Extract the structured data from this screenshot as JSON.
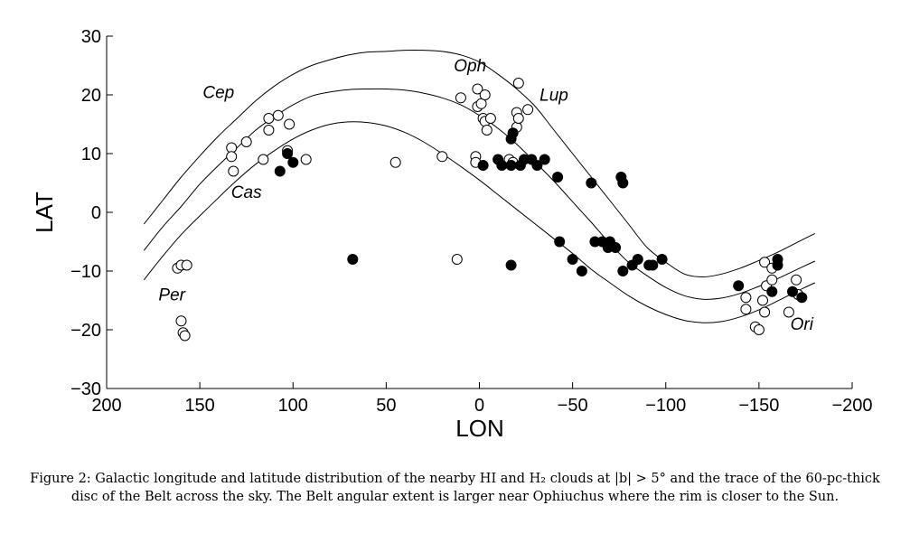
{
  "chart_data": {
    "type": "scatter",
    "title": "",
    "xlabel": "LON",
    "ylabel": "LAT",
    "xlim": [
      200,
      -200
    ],
    "ylim": [
      -30,
      30
    ],
    "xticks": [
      200,
      150,
      100,
      50,
      0,
      -50,
      -100,
      -150,
      -200
    ],
    "yticks": [
      30,
      20,
      10,
      0,
      -10,
      -20,
      -30
    ],
    "xtick_labels": [
      "200",
      "150",
      "100",
      "50",
      "0",
      "−50",
      "−100",
      "−150",
      "−200"
    ],
    "ytick_labels": [
      "30",
      "20",
      "10",
      "0",
      "−10",
      "−20",
      "−30"
    ],
    "grid": false,
    "legend": null,
    "region_labels": [
      {
        "text": "Cep",
        "lon": 140,
        "lat": 19.5
      },
      {
        "text": "Cas",
        "lon": 125,
        "lat": 2.5
      },
      {
        "text": "Per",
        "lon": 165,
        "lat": -15
      },
      {
        "text": "Oph",
        "lon": 5,
        "lat": 24
      },
      {
        "text": "Lup",
        "lon": -40,
        "lat": 19
      },
      {
        "text": "Ori",
        "lon": -173,
        "lat": -20
      }
    ],
    "curves": [
      {
        "x": [
          180,
          170,
          160,
          150,
          140,
          130,
          120,
          110,
          100,
          90,
          80,
          70,
          60,
          50,
          40,
          30,
          20,
          10,
          0,
          -10,
          -20,
          -30,
          -40,
          -50,
          -60,
          -70,
          -80,
          -90,
          -100,
          -110,
          -120,
          -130,
          -140,
          -150,
          -160,
          -170,
          -180
        ],
        "y": [
          -2,
          2,
          6,
          9.6,
          13,
          16,
          19,
          21.5,
          23.5,
          25,
          26,
          26.8,
          27.3,
          27.4,
          27.6,
          27.6,
          27.4,
          26.8,
          25.6,
          23.5,
          21,
          18,
          14,
          10,
          6,
          2,
          -2,
          -6,
          -8.5,
          -10.5,
          -11,
          -10.5,
          -9.5,
          -8.2,
          -6.8,
          -5.2,
          -3.6
        ]
      },
      {
        "x": [
          180,
          170,
          160,
          150,
          140,
          130,
          120,
          110,
          100,
          90,
          80,
          70,
          60,
          50,
          40,
          30,
          20,
          10,
          0,
          -10,
          -20,
          -30,
          -40,
          -50,
          -60,
          -70,
          -80,
          -90,
          -100,
          -110,
          -120,
          -130,
          -140,
          -150,
          -160,
          -170,
          -180
        ],
        "y": [
          -6.5,
          -2.5,
          1,
          4.8,
          8,
          11,
          14,
          16.3,
          18.3,
          19.8,
          20.5,
          20.9,
          21,
          21,
          20.8,
          20.3,
          19.5,
          18.3,
          16.5,
          14.3,
          11.6,
          8.5,
          5.3,
          1.8,
          -1.7,
          -5.3,
          -8.5,
          -10.8,
          -12.8,
          -14.2,
          -14.8,
          -14.6,
          -13.8,
          -12.6,
          -11.3,
          -9.8,
          -8.3
        ]
      },
      {
        "x": [
          180,
          170,
          160,
          150,
          140,
          130,
          120,
          110,
          100,
          90,
          80,
          70,
          60,
          50,
          40,
          30,
          20,
          10,
          0,
          -10,
          -20,
          -30,
          -40,
          -50,
          -60,
          -70,
          -80,
          -90,
          -100,
          -110,
          -120,
          -130,
          -140,
          -150,
          -160,
          -170,
          -180
        ],
        "y": [
          -11.5,
          -7.5,
          -3.8,
          -0.6,
          2.5,
          5.5,
          8.2,
          10.5,
          12.5,
          14,
          15,
          15.4,
          15.3,
          14.7,
          13.6,
          12,
          10,
          7.8,
          5.5,
          3,
          0.5,
          -2,
          -4.5,
          -7,
          -9.7,
          -12,
          -14.2,
          -16,
          -17.4,
          -18.4,
          -18.8,
          -18.6,
          -17.8,
          -16.6,
          -15.1,
          -13.5,
          -12
        ]
      }
    ],
    "series": [
      {
        "marker": "open-circle",
        "points": [
          [
            133,
            11
          ],
          [
            133,
            9.5
          ],
          [
            132,
            7
          ],
          [
            125,
            12
          ],
          [
            116,
            9
          ],
          [
            113,
            14
          ],
          [
            113,
            16
          ],
          [
            108,
            16.5
          ],
          [
            103,
            10.5
          ],
          [
            102,
            15
          ],
          [
            93,
            9
          ],
          [
            45,
            8.5
          ],
          [
            20,
            9.5
          ],
          [
            12,
            -8
          ],
          [
            10,
            19.5
          ],
          [
            2,
            9.5
          ],
          [
            2,
            8.5
          ],
          [
            1,
            21
          ],
          [
            1,
            18
          ],
          [
            -1,
            18.5
          ],
          [
            -2,
            16
          ],
          [
            -3,
            20
          ],
          [
            -3,
            15.5
          ],
          [
            -4,
            14
          ],
          [
            -6,
            16
          ],
          [
            -16,
            9
          ],
          [
            -18,
            8.5
          ],
          [
            -20,
            17
          ],
          [
            -20,
            14.5
          ],
          [
            -21,
            16
          ],
          [
            -21,
            22
          ],
          [
            -26,
            17.5
          ],
          [
            162,
            -9.5
          ],
          [
            160,
            -9
          ],
          [
            157,
            -9
          ],
          [
            160,
            -18.5
          ],
          [
            159,
            -20.5
          ],
          [
            158,
            -21
          ],
          [
            -143,
            -14.5
          ],
          [
            -143,
            -16.5
          ],
          [
            -148,
            -19.5
          ],
          [
            -150,
            -20
          ],
          [
            -152,
            -15
          ],
          [
            -153,
            -8.5
          ],
          [
            -154,
            -12.5
          ],
          [
            -157,
            -9.5
          ],
          [
            -157,
            -11.5
          ],
          [
            -153,
            -17
          ],
          [
            -166,
            -17
          ],
          [
            -170,
            -11.5
          ],
          [
            -171,
            -14
          ]
        ]
      },
      {
        "marker": "filled-circle",
        "points": [
          [
            -17,
            12.5
          ],
          [
            -18,
            13.5
          ],
          [
            -10,
            9
          ],
          [
            -12,
            8
          ],
          [
            -2,
            8
          ],
          [
            -17,
            8
          ],
          [
            -22,
            8
          ],
          [
            -24,
            9
          ],
          [
            -28,
            9
          ],
          [
            -31,
            8
          ],
          [
            -35,
            9
          ],
          [
            -42,
            6
          ],
          [
            -60,
            5
          ],
          [
            -76,
            6
          ],
          [
            -77,
            5
          ],
          [
            -43,
            -5
          ],
          [
            -50,
            -8
          ],
          [
            -55,
            -10
          ],
          [
            -62,
            -5
          ],
          [
            -66,
            -5
          ],
          [
            -70,
            -5
          ],
          [
            -73,
            -6
          ],
          [
            -69,
            -6
          ],
          [
            -77,
            -10
          ],
          [
            -82,
            -9
          ],
          [
            -85,
            -8
          ],
          [
            -91,
            -9
          ],
          [
            -93,
            -9
          ],
          [
            -98,
            -8
          ],
          [
            107,
            7
          ],
          [
            103,
            10
          ],
          [
            100,
            8.5
          ],
          [
            68,
            -8
          ],
          [
            -17,
            -9
          ],
          [
            -139,
            -12.5
          ],
          [
            -157,
            -13.5
          ],
          [
            -160,
            -9
          ],
          [
            -160,
            -8
          ],
          [
            -168,
            -13.5
          ],
          [
            -173,
            -14.5
          ]
        ]
      }
    ]
  },
  "caption": "Figure 2: Galactic longitude and latitude distribution of the nearby HI and H₂ clouds at |b| > 5° and the trace of the 60-pc-thick disc of the Belt across the sky. The Belt angular extent is larger near Ophiuchus where the rim is closer to the Sun."
}
